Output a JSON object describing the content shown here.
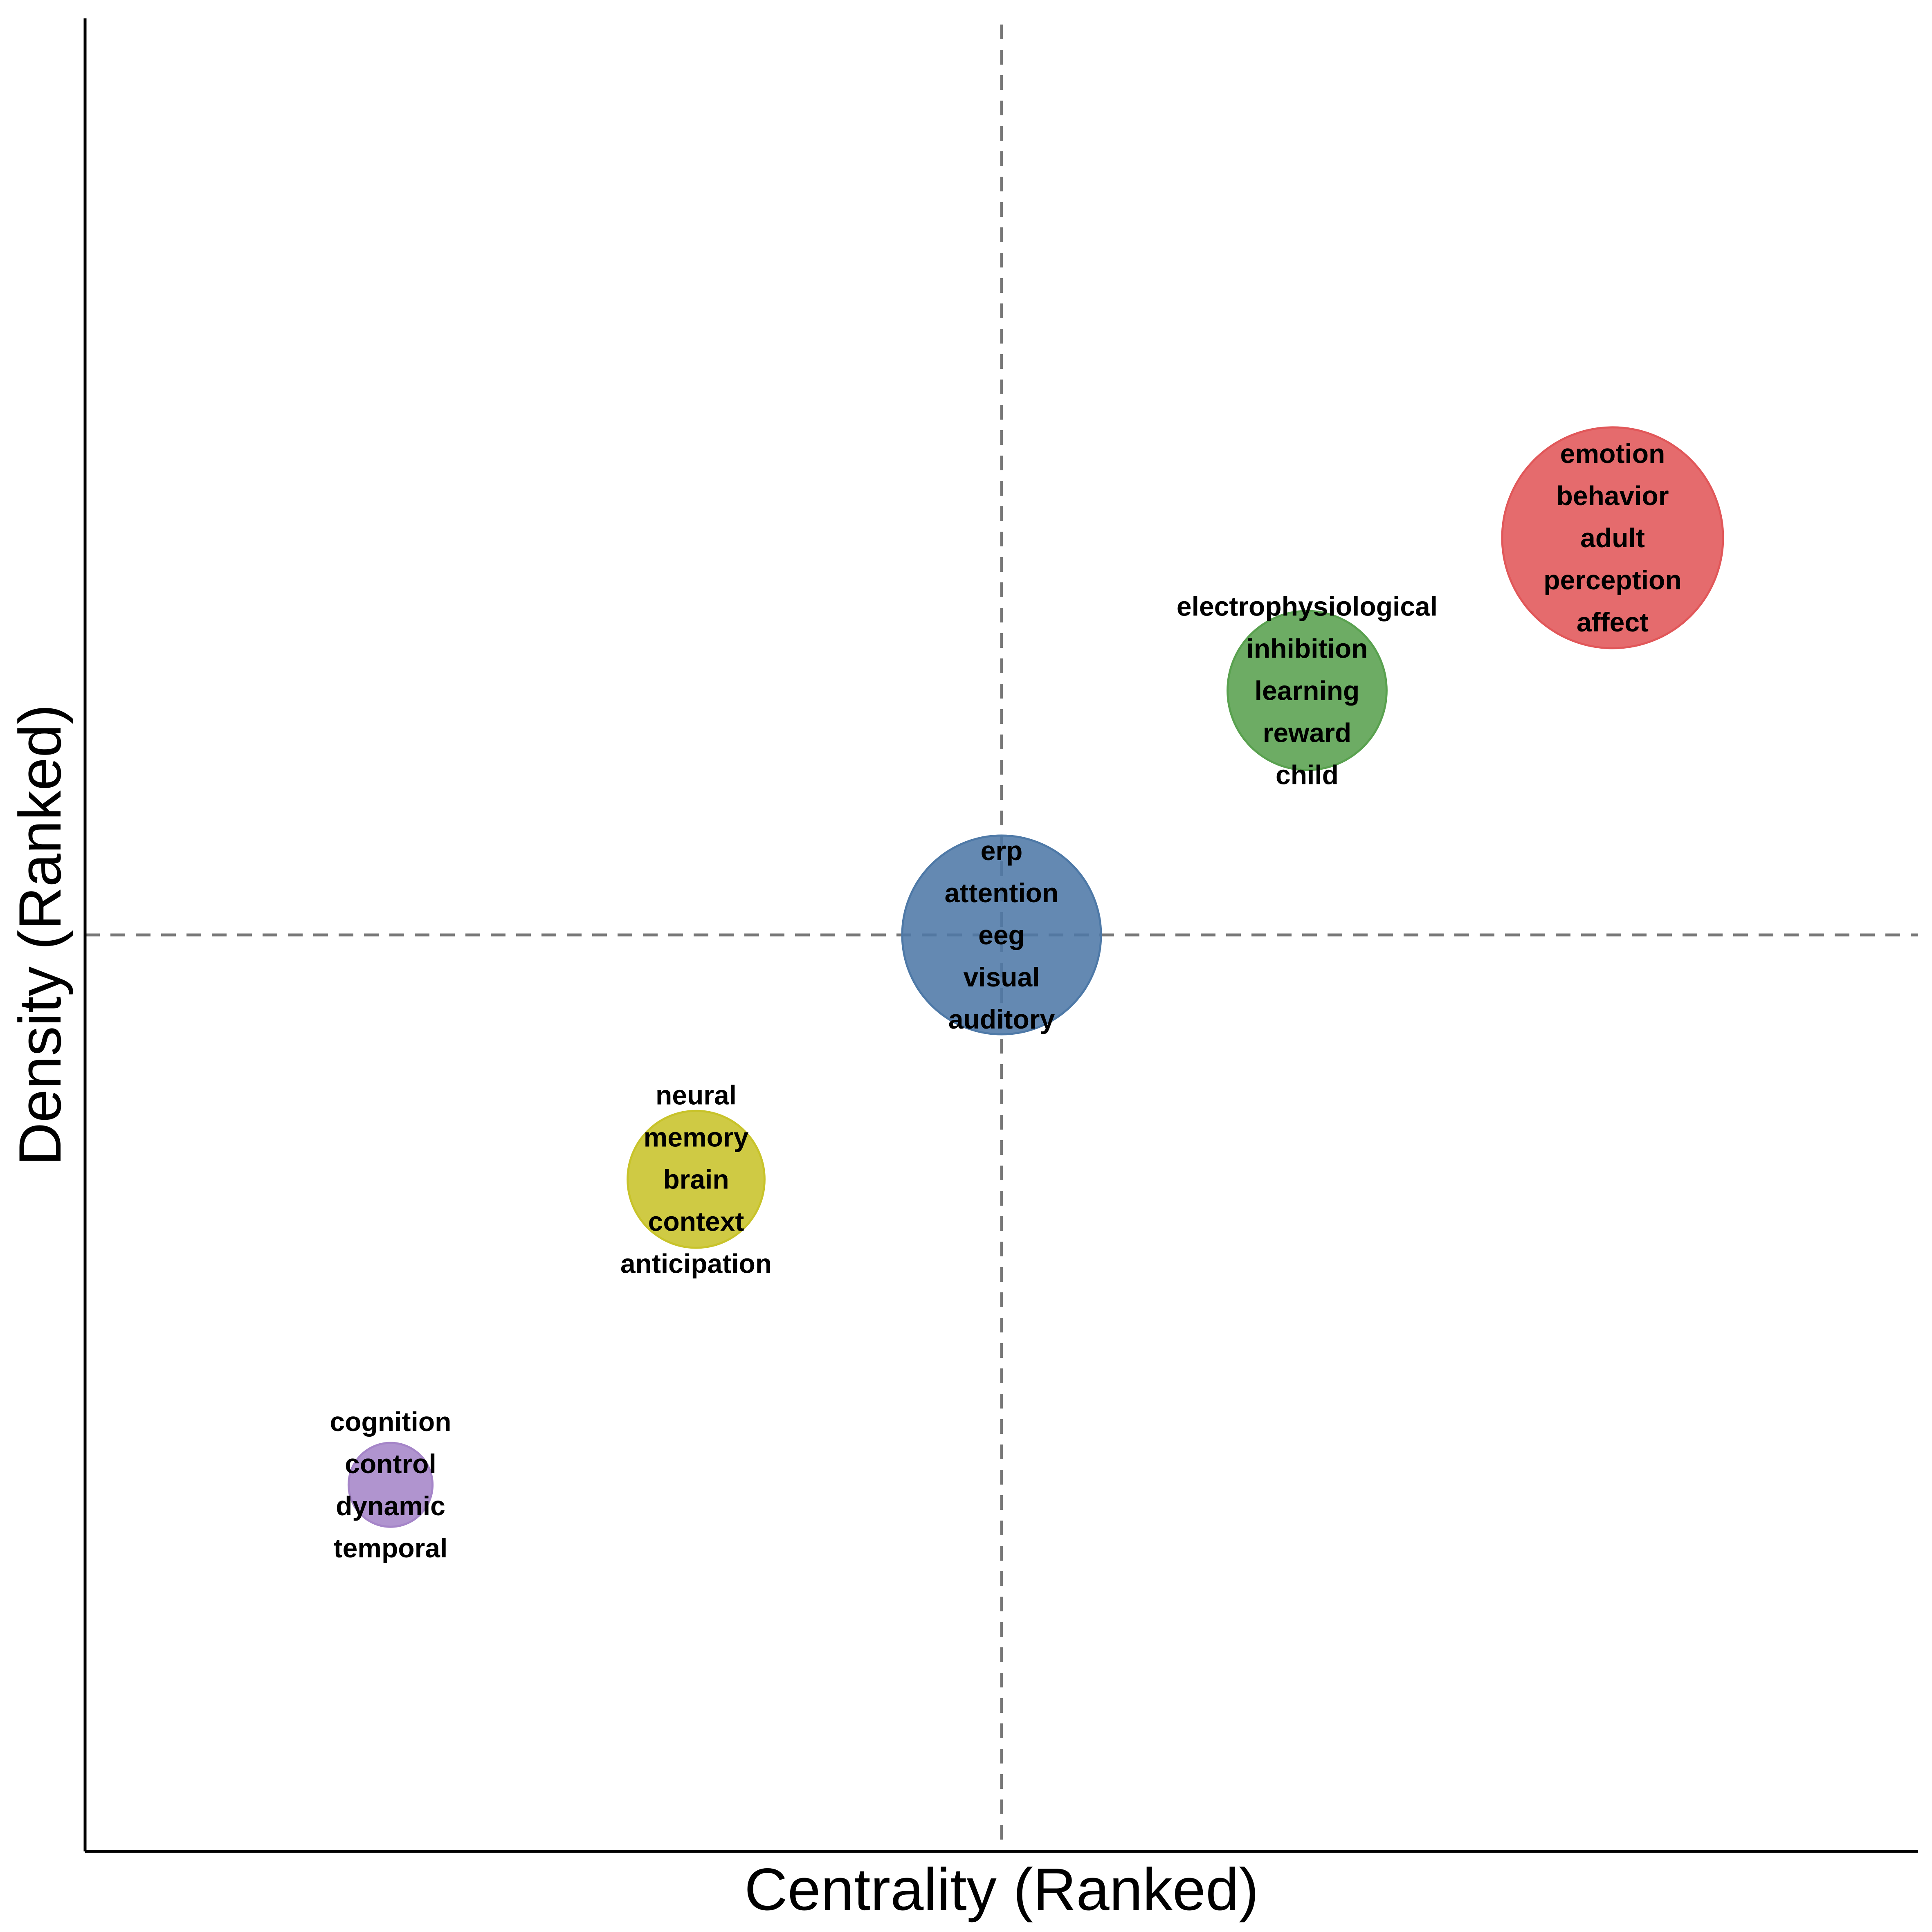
{
  "chart_data": {
    "type": "scatter",
    "xlabel": "Centrality (Ranked)",
    "ylabel": "Density (Ranked)",
    "xlim": [
      0,
      6
    ],
    "ylim": [
      0,
      6
    ],
    "reference_lines": {
      "x": 3,
      "y": 3
    },
    "grid": false,
    "legend": "none",
    "clusters": [
      {
        "x": 5.0,
        "y": 4.3,
        "size": 1.0,
        "color": "#E15759",
        "terms": [
          "emotion",
          "behavior",
          "adult",
          "perception",
          "affect"
        ]
      },
      {
        "x": 4.0,
        "y": 3.8,
        "size": 0.72,
        "color": "#59A14F",
        "terms": [
          "electrophysiological",
          "inhibition",
          "learning",
          "reward",
          "child"
        ]
      },
      {
        "x": 3.0,
        "y": 3.0,
        "size": 0.9,
        "color": "#4E79A7",
        "terms": [
          "erp",
          "attention",
          "eeg",
          "visual",
          "auditory"
        ]
      },
      {
        "x": 2.0,
        "y": 2.2,
        "size": 0.62,
        "color": "#C8C32A",
        "terms": [
          "neural",
          "memory",
          "brain",
          "context",
          "anticipation"
        ]
      },
      {
        "x": 1.0,
        "y": 1.2,
        "size": 0.38,
        "color": "#A585C8",
        "terms": [
          "cognition",
          "control",
          "dynamic",
          "temporal"
        ]
      }
    ]
  }
}
